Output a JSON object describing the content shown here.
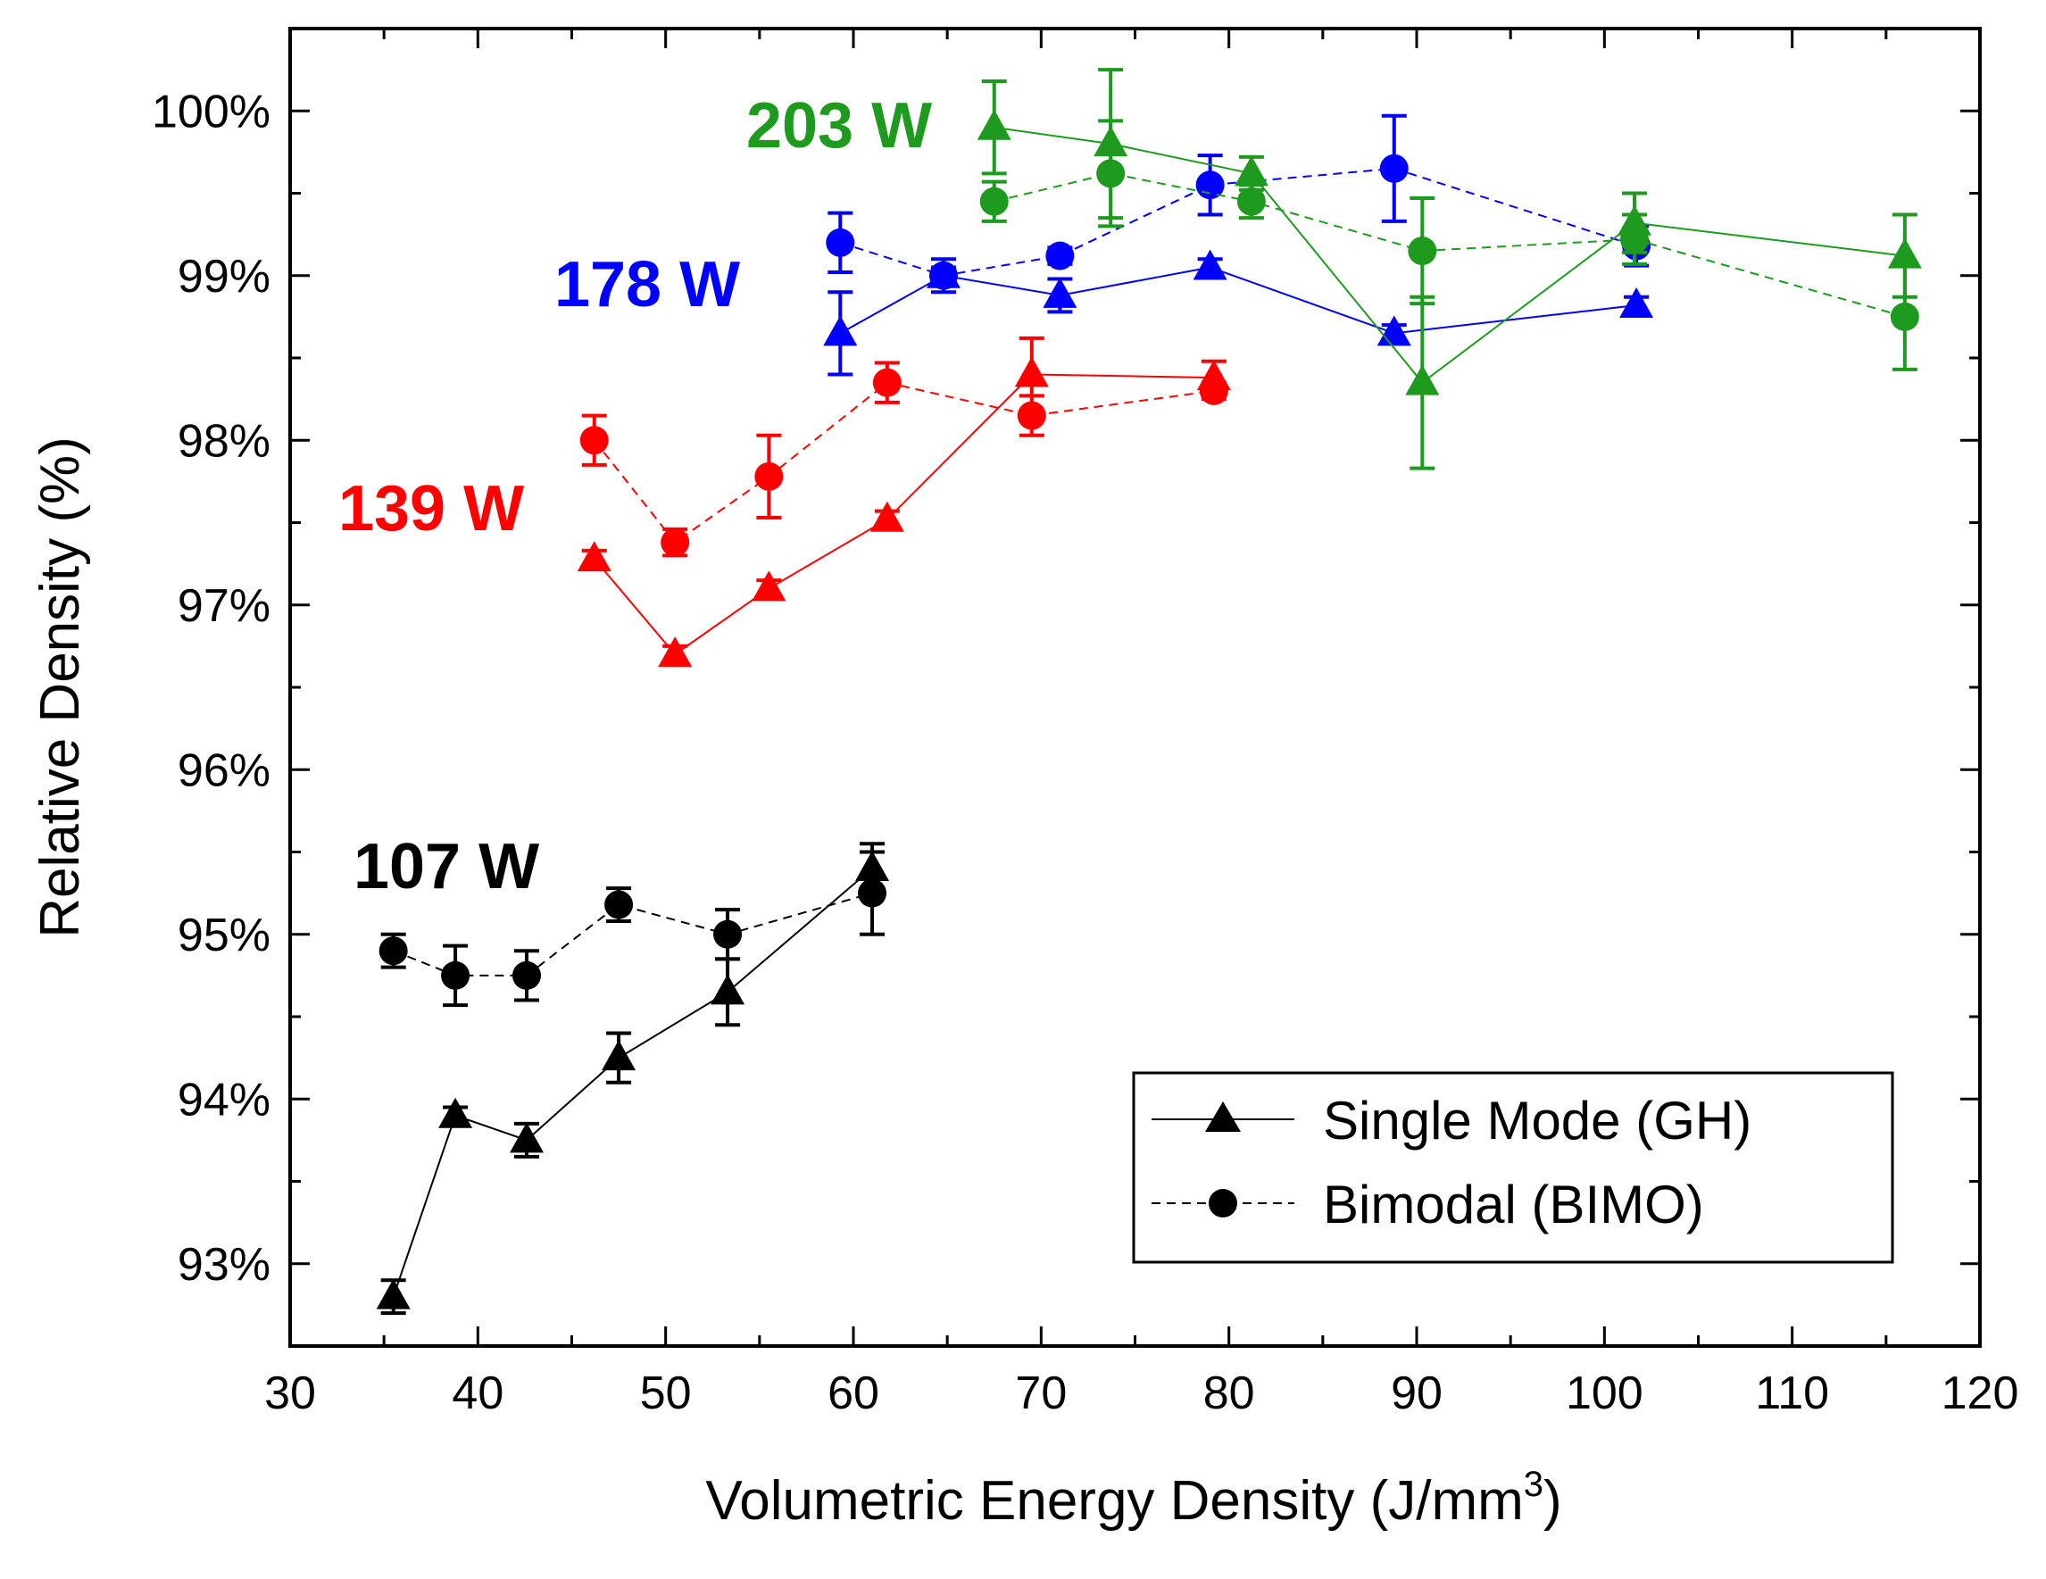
{
  "chart_data": {
    "type": "scatter",
    "xlabel": "Volumetric Energy Density (J/mm",
    "xlabel_superscript": "3",
    "xlabel_suffix": ")",
    "ylabel": "Relative Density (%)",
    "xlim": [
      30,
      120
    ],
    "ylim": [
      92.5,
      100.5
    ],
    "x_ticks": [
      30,
      40,
      50,
      60,
      70,
      80,
      90,
      100,
      110,
      120
    ],
    "y_ticks": [
      93,
      94,
      95,
      96,
      97,
      98,
      99,
      100
    ],
    "y_tick_labels": [
      "93%",
      "94%",
      "95%",
      "96%",
      "97%",
      "98%",
      "99%",
      "100%"
    ],
    "grid": false,
    "legend": {
      "position": "bottom-right",
      "entries": [
        {
          "label": "Single Mode (GH)",
          "marker": "triangle",
          "line": "solid"
        },
        {
          "label": "Bimodal (BIMO)",
          "marker": "circle",
          "line": "dashed"
        }
      ]
    },
    "series": [
      {
        "name": "107 W Single Mode (GH)",
        "power_label": "107 W",
        "color": "#000000",
        "marker": "triangle",
        "line": "solid",
        "x": [
          35.5,
          38.8,
          42.6,
          47.5,
          53.3,
          61.0
        ],
        "y": [
          92.8,
          93.9,
          93.75,
          94.25,
          94.65,
          95.4
        ],
        "err": [
          0.1,
          0.05,
          0.1,
          0.15,
          0.2,
          0.15
        ]
      },
      {
        "name": "107 W Bimodal (BIMO)",
        "color": "#000000",
        "marker": "circle",
        "line": "dashed",
        "x": [
          35.5,
          38.8,
          42.6,
          47.5,
          53.3,
          61.0
        ],
        "y": [
          94.9,
          94.75,
          94.75,
          95.18,
          95.0,
          95.25
        ],
        "err": [
          0.1,
          0.18,
          0.15,
          0.1,
          0.15,
          0.25
        ]
      },
      {
        "name": "139 W Single Mode (GH)",
        "power_label": "139 W",
        "color": "#ff0000",
        "marker": "triangle",
        "line": "solid",
        "x": [
          46.2,
          50.5,
          55.5,
          61.8,
          69.5,
          79.2
        ],
        "y": [
          97.28,
          96.7,
          97.1,
          97.52,
          98.4,
          98.38
        ],
        "err": [
          0.05,
          0.05,
          0.05,
          0.05,
          0.22,
          0.1
        ]
      },
      {
        "name": "139 W Bimodal (BIMO)",
        "color": "#ff0000",
        "marker": "circle",
        "line": "dashed",
        "x": [
          46.2,
          50.5,
          55.5,
          61.8,
          69.5,
          79.2
        ],
        "y": [
          98.0,
          97.38,
          97.78,
          98.35,
          98.15,
          98.3
        ],
        "err": [
          0.15,
          0.08,
          0.25,
          0.12,
          0.12,
          0.05
        ]
      },
      {
        "name": "178 W Single Mode (GH)",
        "power_label": "178 W",
        "color": "#0000ff",
        "marker": "triangle",
        "line": "solid",
        "x": [
          59.3,
          64.8,
          71.0,
          79.0,
          88.8,
          101.7
        ],
        "y": [
          98.65,
          99.0,
          98.88,
          99.05,
          98.65,
          98.82
        ],
        "err": [
          0.25,
          0.05,
          0.1,
          0.05,
          0.05,
          0.05
        ]
      },
      {
        "name": "178 W Bimodal (BIMO)",
        "color": "#0000ff",
        "marker": "circle",
        "line": "dashed",
        "x": [
          59.3,
          64.8,
          71.0,
          79.0,
          88.8,
          101.7
        ],
        "y": [
          99.2,
          99.0,
          99.12,
          99.55,
          99.65,
          99.18
        ],
        "err": [
          0.18,
          0.1,
          0.05,
          0.18,
          0.32,
          0.12
        ]
      },
      {
        "name": "203 W Single Mode (GH)",
        "power_label": "203 W",
        "color": "#1e9a1e",
        "marker": "triangle",
        "line": "solid",
        "x": [
          67.5,
          73.7,
          81.2,
          90.3,
          101.6,
          116.0
        ],
        "y": [
          99.9,
          99.8,
          99.62,
          98.35,
          99.32,
          99.12
        ],
        "err": [
          0.28,
          0.45,
          0.1,
          0.52,
          0.18,
          0.25
        ]
      },
      {
        "name": "203 W Bimodal (BIMO)",
        "color": "#1e9a1e",
        "marker": "circle",
        "line": "dashed",
        "x": [
          67.5,
          73.7,
          81.2,
          90.3,
          101.6,
          116.0
        ],
        "y": [
          99.45,
          99.62,
          99.45,
          99.15,
          99.22,
          98.75
        ],
        "err": [
          0.12,
          0.32,
          0.1,
          0.32,
          0.15,
          0.32
        ]
      }
    ]
  }
}
